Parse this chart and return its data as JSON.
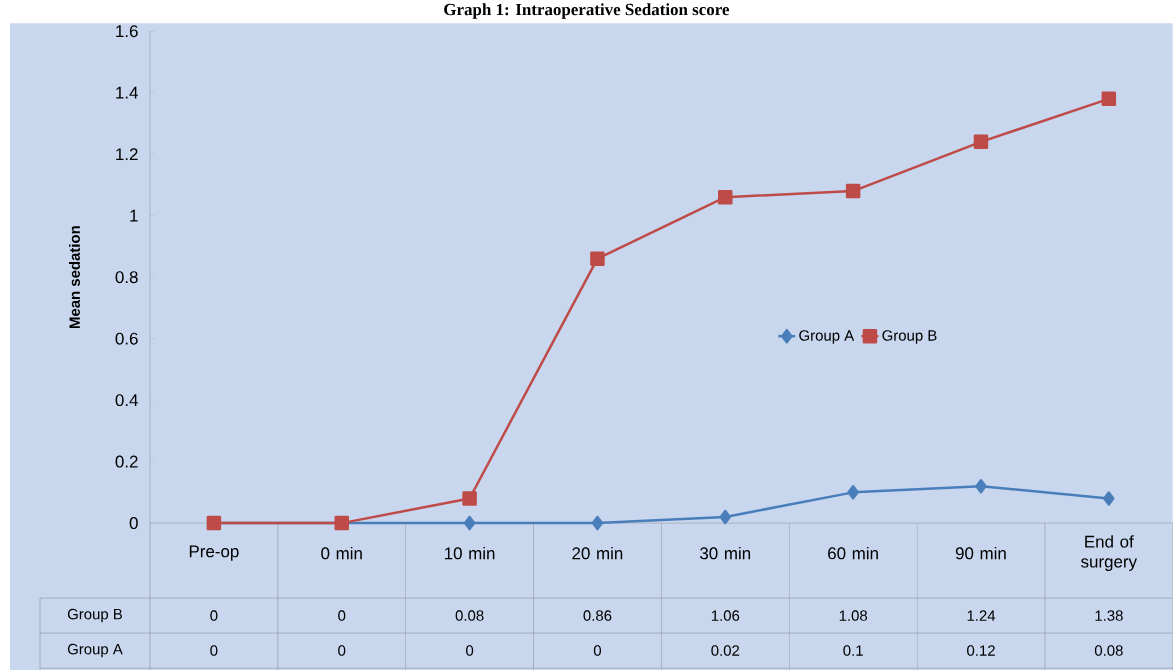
{
  "chart_data": {
    "type": "line",
    "title": "Graph 1: Intraoperative Sedation score",
    "ylabel": "Mean sedation",
    "categories": [
      "Pre-op",
      "0 min",
      "10 min",
      "20 min",
      "30 min",
      "60 min",
      "90 min",
      "End of surgery"
    ],
    "series": [
      {
        "name": "Group A",
        "color": "#4a7ebb",
        "marker": "diamond",
        "values": [
          0,
          0,
          0,
          0,
          0.02,
          0.1,
          0.12,
          0.08
        ]
      },
      {
        "name": "Group B",
        "color": "#be4b48",
        "marker": "square",
        "values": [
          0,
          0,
          0.08,
          0.86,
          1.06,
          1.08,
          1.24,
          1.38
        ]
      }
    ],
    "ylim": [
      0,
      1.6
    ],
    "yticks": [
      0,
      0.2,
      0.4,
      0.6,
      0.8,
      1,
      1.2,
      1.4,
      1.6
    ],
    "grid": false,
    "legend": "right",
    "data_labels": true
  }
}
